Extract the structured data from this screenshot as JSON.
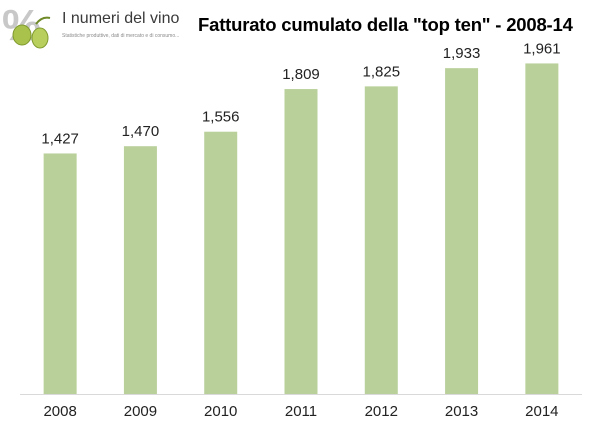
{
  "logo": {
    "name": "I numeri del vino",
    "tagline": "Statistiche produttive, dati di mercato e di consumo..."
  },
  "chart_data": {
    "type": "bar",
    "title": "Fatturato cumulato della \"top ten\" - 2008-14",
    "xlabel": "",
    "ylabel": "",
    "categories": [
      "2008",
      "2009",
      "2010",
      "2011",
      "2012",
      "2013",
      "2014"
    ],
    "values": [
      1427,
      1470,
      1556,
      1809,
      1825,
      1933,
      1961
    ],
    "value_labels": [
      "1,427",
      "1,470",
      "1,556",
      "1,809",
      "1,825",
      "1,933",
      "1,961"
    ],
    "ylim": [
      0,
      2100
    ],
    "bar_color": "#b9d09a",
    "grid": false,
    "legend": "none"
  }
}
